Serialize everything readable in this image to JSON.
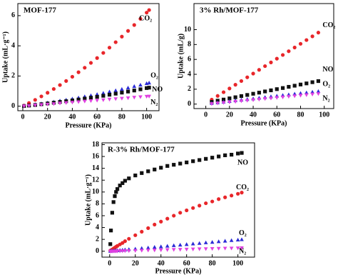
{
  "chart_data": [
    {
      "type": "scatter",
      "title": "MOF-177",
      "x_label": "Pressure (KPa)",
      "y_label": "Uptake (mL·g⁻¹)",
      "xlim": [
        -4,
        110
      ],
      "ylim": [
        -0.3,
        6.8
      ],
      "xticks": [
        0,
        20,
        40,
        60,
        80,
        100
      ],
      "yticks": [
        0,
        2,
        4,
        6
      ],
      "x": [
        1,
        5,
        10,
        15,
        20,
        25,
        30,
        35,
        40,
        45,
        50,
        55,
        60,
        65,
        70,
        75,
        80,
        85,
        90,
        95,
        100,
        102
      ],
      "series": [
        {
          "name": "CO₂",
          "color": "#e8262a",
          "marker": "circle",
          "values": [
            0.04,
            0.21,
            0.42,
            0.65,
            0.89,
            1.14,
            1.4,
            1.67,
            1.95,
            2.25,
            2.55,
            2.87,
            3.19,
            3.53,
            3.88,
            4.24,
            4.61,
            4.99,
            5.38,
            5.79,
            6.2,
            6.37
          ]
        },
        {
          "name": "O₂",
          "color": "#2b2bd6",
          "marker": "triangle-up",
          "values": [
            0.01,
            0.05,
            0.11,
            0.16,
            0.22,
            0.28,
            0.35,
            0.41,
            0.48,
            0.55,
            0.63,
            0.7,
            0.78,
            0.86,
            0.95,
            1.03,
            1.12,
            1.21,
            1.31,
            1.4,
            1.5,
            1.54
          ]
        },
        {
          "name": "NO",
          "color": "#111111",
          "marker": "square",
          "values": [
            0.01,
            0.04,
            0.08,
            0.13,
            0.18,
            0.23,
            0.28,
            0.33,
            0.38,
            0.44,
            0.5,
            0.56,
            0.62,
            0.69,
            0.76,
            0.83,
            0.9,
            0.97,
            1.04,
            1.12,
            1.2,
            1.23
          ]
        },
        {
          "name": "N₂",
          "color": "#e040e0",
          "marker": "triangle-down",
          "values": [
            0.01,
            0.03,
            0.07,
            0.1,
            0.13,
            0.16,
            0.2,
            0.23,
            0.26,
            0.29,
            0.33,
            0.36,
            0.39,
            0.42,
            0.46,
            0.49,
            0.52,
            0.55,
            0.59,
            0.62,
            0.65,
            0.66
          ]
        }
      ]
    },
    {
      "type": "scatter",
      "title": "3% Rh/MOF-177",
      "x_label": "Pressure (KPa)",
      "y_label": "Uptake (mL/g)",
      "xlim": [
        -10,
        108
      ],
      "ylim": [
        -0.6,
        13.5
      ],
      "xticks": [
        0,
        20,
        40,
        60,
        80,
        100
      ],
      "yticks": [
        0,
        2,
        4,
        6,
        8,
        10
      ],
      "x": [
        5,
        10,
        15,
        20,
        25,
        30,
        35,
        40,
        45,
        50,
        55,
        60,
        65,
        70,
        75,
        80,
        85,
        90,
        95
      ],
      "series": [
        {
          "name": "CO₂",
          "color": "#e8262a",
          "marker": "circle",
          "values": [
            0.6,
            1.1,
            1.6,
            2.1,
            2.6,
            3.1,
            3.6,
            4.1,
            4.6,
            5.1,
            5.6,
            6.1,
            6.6,
            7.1,
            7.6,
            8.1,
            8.6,
            9.1,
            9.6
          ]
        },
        {
          "name": "NO",
          "color": "#111111",
          "marker": "square",
          "values": [
            0.3,
            0.46,
            0.61,
            0.77,
            0.92,
            1.08,
            1.23,
            1.39,
            1.54,
            1.7,
            1.85,
            2.01,
            2.16,
            2.32,
            2.47,
            2.63,
            2.78,
            2.94,
            3.09
          ]
        },
        {
          "name": "O₂",
          "color": "#2b2bd6",
          "marker": "triangle-up",
          "values": [
            0.1,
            0.19,
            0.28,
            0.37,
            0.46,
            0.55,
            0.63,
            0.72,
            0.81,
            0.9,
            0.99,
            1.08,
            1.17,
            1.26,
            1.35,
            1.44,
            1.52,
            1.61,
            1.7
          ]
        },
        {
          "name": "N₂",
          "color": "#e040e0",
          "marker": "triangle-down",
          "values": [
            0.05,
            0.13,
            0.2,
            0.28,
            0.35,
            0.43,
            0.5,
            0.58,
            0.65,
            0.73,
            0.8,
            0.88,
            0.95,
            1.03,
            1.1,
            1.18,
            1.25,
            1.33,
            1.4
          ]
        }
      ]
    },
    {
      "type": "scatter",
      "title": "R-3% Rh/MOF-177",
      "x_label": "Pressure (KPa)",
      "y_label": "Uptake (mL·g⁻¹)",
      "xlim": [
        -6,
        113
      ],
      "ylim": [
        -1,
        18.3
      ],
      "xticks": [
        0,
        20,
        40,
        60,
        80,
        100
      ],
      "yticks": [
        0,
        2,
        4,
        6,
        8,
        10,
        12,
        14,
        16,
        18
      ],
      "x": [
        0.5,
        1,
        2,
        3,
        4,
        5,
        6,
        8,
        10,
        12,
        15,
        20,
        25,
        30,
        35,
        40,
        45,
        50,
        55,
        60,
        65,
        70,
        75,
        80,
        85,
        90,
        95,
        100,
        103
      ],
      "series": [
        {
          "name": "NO",
          "color": "#111111",
          "marker": "square",
          "values": [
            1.2,
            3.5,
            6.5,
            8.3,
            9.3,
            10.0,
            10.5,
            11.1,
            11.5,
            11.9,
            12.3,
            12.8,
            13.2,
            13.5,
            13.8,
            14.1,
            14.4,
            14.6,
            14.8,
            15.0,
            15.2,
            15.4,
            15.6,
            15.8,
            16.0,
            16.2,
            16.3,
            16.5,
            16.6
          ]
        },
        {
          "name": "CO₂",
          "color": "#e8262a",
          "marker": "circle",
          "values": [
            0.1,
            0.15,
            0.3,
            0.45,
            0.6,
            0.75,
            0.9,
            1.15,
            1.4,
            1.7,
            2.1,
            2.7,
            3.3,
            3.9,
            4.5,
            5.0,
            5.5,
            6.0,
            6.5,
            6.9,
            7.3,
            7.7,
            8.1,
            8.4,
            8.8,
            9.1,
            9.4,
            9.7,
            9.9
          ]
        },
        {
          "name": "O₂",
          "color": "#2b2bd6",
          "marker": "triangle-up",
          "values": [
            0.01,
            0.02,
            0.04,
            0.06,
            0.08,
            0.1,
            0.11,
            0.15,
            0.19,
            0.23,
            0.29,
            0.38,
            0.48,
            0.57,
            0.67,
            0.76,
            0.86,
            0.95,
            1.05,
            1.14,
            1.24,
            1.33,
            1.43,
            1.52,
            1.62,
            1.71,
            1.81,
            1.9,
            1.96
          ]
        },
        {
          "name": "N₂",
          "color": "#e040e0",
          "marker": "triangle-down",
          "values": [
            0,
            0.01,
            0.01,
            0.02,
            0.02,
            0.03,
            0.03,
            0.04,
            0.06,
            0.07,
            0.08,
            0.11,
            0.14,
            0.17,
            0.19,
            0.22,
            0.25,
            0.28,
            0.3,
            0.33,
            0.36,
            0.39,
            0.41,
            0.44,
            0.47,
            0.5,
            0.52,
            0.55,
            0.57
          ]
        }
      ]
    }
  ]
}
